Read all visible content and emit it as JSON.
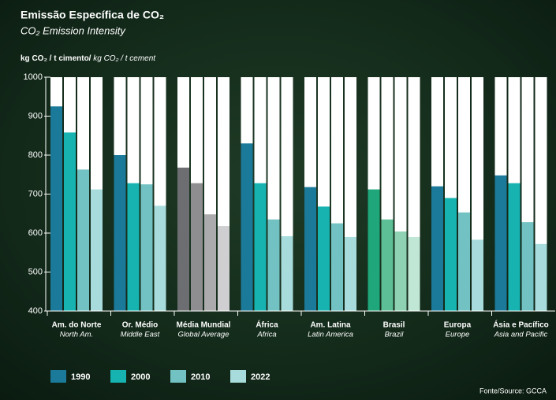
{
  "chart_data": {
    "type": "bar",
    "title": "Emissão Específica de CO₂",
    "subtitle": "CO₂ Emission Intensity",
    "y_label": "kg CO₂ / t cimento/",
    "y_label_en": "kg CO₂ / t cement",
    "source": "Fonte/Source: GCCA",
    "categories": [
      "Am. do Norte",
      "Or. Médio",
      "Média Mundial",
      "África",
      "Am. Latina",
      "Brasil",
      "Europa",
      "Ásia e Pacífico"
    ],
    "categories_en": [
      "North Am.",
      "Middle East",
      "Global Average",
      "Africa",
      "Latin America",
      "Brazil",
      "Europe",
      "Asia and Pacific"
    ],
    "series": [
      {
        "name": "1990",
        "color": "#1b7a9a",
        "colors": [
          "#1b7a9a",
          "#1b7a9a",
          "#6d6e71",
          "#1b7a9a",
          "#1b7a9a",
          "#1fa67a",
          "#1b7a9a",
          "#1b7a9a"
        ],
        "values": [
          925,
          800,
          768,
          830,
          718,
          712,
          720,
          748
        ]
      },
      {
        "name": "2000",
        "color": "#17b3b0",
        "colors": [
          "#17b3b0",
          "#17b3b0",
          "#8e8e90",
          "#17b3b0",
          "#17b3b0",
          "#5cbf96",
          "#17b3b0",
          "#17b3b0"
        ],
        "values": [
          858,
          728,
          728,
          728,
          668,
          635,
          690,
          728
        ]
      },
      {
        "name": "2010",
        "color": "#72c2c3",
        "colors": [
          "#72c2c3",
          "#72c2c3",
          "#ababad",
          "#72c2c3",
          "#72c2c3",
          "#8fd1b3",
          "#72c2c3",
          "#72c2c3"
        ],
        "values": [
          763,
          725,
          648,
          635,
          625,
          604,
          653,
          628
        ]
      },
      {
        "name": "2022",
        "color": "#a8dcdc",
        "colors": [
          "#a8dcdc",
          "#a8dcdc",
          "#cfcfd1",
          "#a8dcdc",
          "#a8dcdc",
          "#c0e6d5",
          "#a8dcdc",
          "#a8dcdc"
        ],
        "values": [
          712,
          670,
          618,
          592,
          590,
          590,
          583,
          572
        ]
      }
    ],
    "ylim": [
      400,
      1000
    ],
    "yticks": [
      400,
      500,
      600,
      700,
      800,
      900,
      1000
    ]
  }
}
